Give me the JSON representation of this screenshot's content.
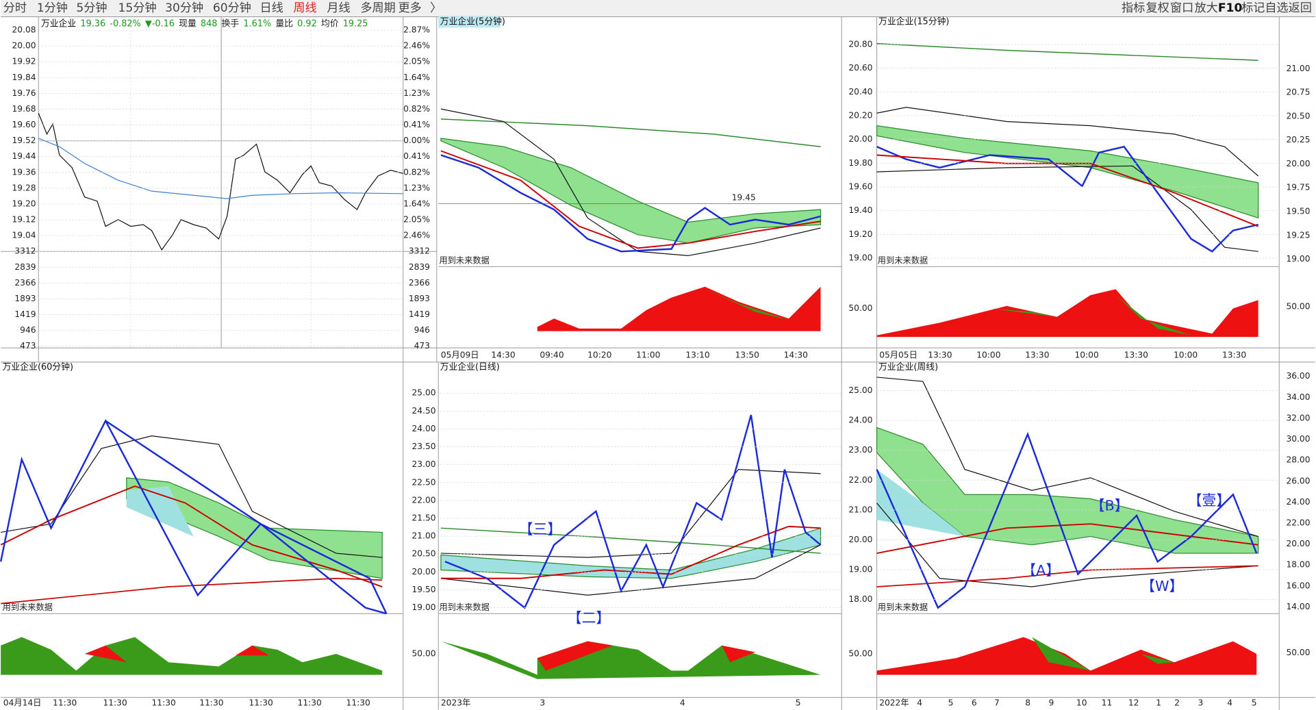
{
  "toolbar": {
    "tabs": [
      "分时",
      "1分钟",
      "5分钟",
      "15分钟",
      "30分钟",
      "60分钟",
      "日线",
      "周线",
      "月线",
      "多周期",
      "更多",
      "〉"
    ],
    "right": [
      "指标",
      "复权",
      "窗口",
      "放大",
      "F10",
      "标记",
      "自选",
      "返回"
    ]
  },
  "panels": [
    {
      "title": "万业企业",
      "quote": [
        "19.36",
        "-0.82%",
        "▼-0.16",
        "现量",
        "848",
        "换手",
        "1.61%",
        "量比",
        "0.92",
        "均价",
        "19.25"
      ],
      "left_axis": [
        "20.08",
        "20.00",
        "19.92",
        "19.84",
        "19.76",
        "19.68",
        "19.60",
        "19.52",
        "19.44",
        "19.36",
        "19.28",
        "19.20",
        "19.12",
        "19.04",
        "3312",
        "2839",
        "2366",
        "1893",
        "1419",
        "946",
        "473"
      ],
      "right_axis": [
        "2.87%",
        "2.46%",
        "2.05%",
        "1.64%",
        "1.23%",
        "0.82%",
        "0.41%",
        "0.00%",
        "0.41%",
        "0.82%",
        "1.23%",
        "1.64%",
        "2.05%",
        "2.46%",
        "3312",
        "2839",
        "2366",
        "1893",
        "1419",
        "946",
        "473"
      ]
    },
    {
      "title": "万业企业(5分钟)",
      "notes": [
        "19.45",
        "用到未来数据"
      ],
      "x_labels": [
        "05月09日",
        "14:30",
        "09:40",
        "10:20",
        "11:00",
        "13:10",
        "13:50",
        "14:30"
      ]
    },
    {
      "title": "万业企业(15分钟)",
      "notes": [
        "用到未来数据"
      ],
      "left_axis": [
        "20.80",
        "20.60",
        "20.40",
        "20.20",
        "20.00",
        "19.80",
        "19.60",
        "19.40",
        "19.20",
        "19.00"
      ],
      "left_ind": "50.00",
      "right_axis": [
        "21.00",
        "20.75",
        "20.50",
        "20.25",
        "20.00",
        "19.75",
        "19.50",
        "19.25",
        "19.00"
      ],
      "right_ind": "50.00",
      "x_labels": [
        "05月05日",
        "13:30",
        "10:00",
        "13:30",
        "10:00",
        "13:30",
        "10:00",
        "13:30"
      ]
    },
    {
      "title": "万业企业(60分钟)",
      "notes": [
        "用到未来数据"
      ],
      "x_labels": [
        "04月14日",
        "11:30",
        "11:30",
        "11:30",
        "11:30",
        "11:30",
        "11:30",
        "11:30"
      ]
    },
    {
      "title": "万业企业(日线)",
      "notes": [
        "【三】",
        "【二】",
        "用到未来数据"
      ],
      "left_axis": [
        "25.00",
        "24.50",
        "24.00",
        "23.50",
        "23.00",
        "22.50",
        "22.00",
        "21.50",
        "21.00",
        "20.50",
        "20.00",
        "19.50",
        "19.00"
      ],
      "left_ind": "50.00",
      "x_labels": [
        "2023年",
        "3",
        "4",
        "5"
      ]
    },
    {
      "title": "万业企业(周线)",
      "notes": [
        "【B】",
        "【A】",
        "【W】",
        "【壹】",
        "用到未来数据"
      ],
      "left_axis": [
        "25.00",
        "24.00",
        "23.00",
        "22.00",
        "21.00",
        "20.00",
        "19.00",
        "18.00"
      ],
      "left_ind": "50.00",
      "right_axis": [
        "36.00",
        "34.00",
        "32.00",
        "30.00",
        "28.00",
        "26.00",
        "24.00",
        "22.00",
        "20.00",
        "18.00",
        "16.00",
        "14.00"
      ],
      "right_ind": "50.00",
      "x_labels": [
        "2022年",
        "4",
        "5",
        "6",
        "7",
        "8",
        "9",
        "10",
        "11",
        "12",
        "1",
        "2",
        "3",
        "4",
        "5"
      ]
    }
  ]
}
